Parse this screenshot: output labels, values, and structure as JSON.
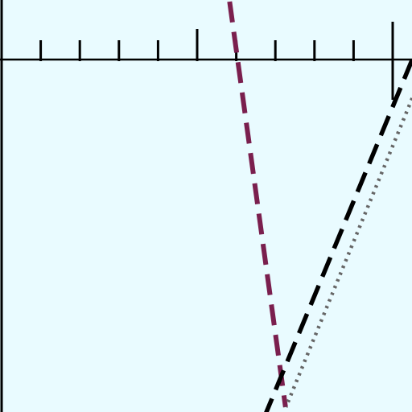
{
  "chart_data": {
    "type": "line",
    "title": "",
    "xlabel": "",
    "ylabel": "",
    "xlim": [
      0,
      10
    ],
    "ylim": [
      -9,
      1.5
    ],
    "grid": false,
    "tick_labels": [],
    "x_ticks": [
      1,
      2,
      3,
      4,
      5,
      6,
      7,
      8,
      9,
      10
    ],
    "major_ticks": [
      5,
      10
    ],
    "series": [
      {
        "style": "dashed",
        "color": "#7a1f4e",
        "points": [
          [
            5.83,
            1.5
          ],
          [
            7.26,
            -9.0
          ]
        ]
      },
      {
        "style": "dashed",
        "color": "#000000",
        "points": [
          [
            10.5,
            0.0
          ],
          [
            6.7,
            -9.3
          ]
        ]
      },
      {
        "style": "dotted",
        "color": "#666666",
        "points": [
          [
            10.5,
            -1.0
          ],
          [
            7.27,
            -9.0
          ]
        ]
      }
    ]
  },
  "colors": {
    "background": "#e9fbff",
    "axis": "#000000"
  }
}
